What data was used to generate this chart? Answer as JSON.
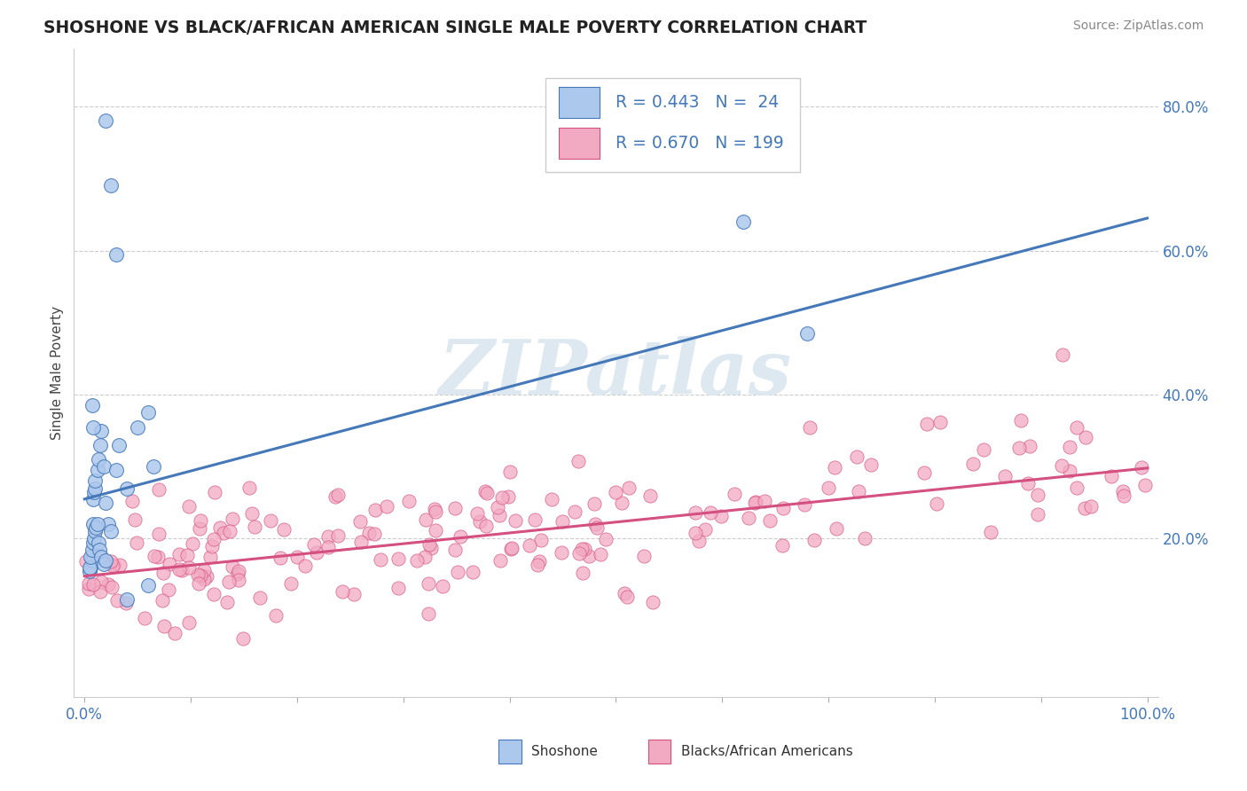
{
  "title": "SHOSHONE VS BLACK/AFRICAN AMERICAN SINGLE MALE POVERTY CORRELATION CHART",
  "source": "Source: ZipAtlas.com",
  "ylabel": "Single Male Poverty",
  "legend_label1": "Shoshone",
  "legend_label2": "Blacks/African Americans",
  "R1": 0.443,
  "N1": 24,
  "R2": 0.67,
  "N2": 199,
  "color1": "#adc8ed",
  "color2": "#f2aac2",
  "line_color1": "#4478b8",
  "line_color2": "#d45080",
  "bg_color": "#ffffff",
  "watermark": "ZIPatlas",
  "watermark_color": "#dde8f0",
  "shoshone_x": [
    0.005,
    0.006,
    0.007,
    0.008,
    0.008,
    0.009,
    0.01,
    0.01,
    0.012,
    0.013,
    0.015,
    0.016,
    0.018,
    0.02,
    0.022,
    0.025,
    0.03,
    0.032,
    0.04,
    0.05,
    0.06,
    0.065,
    0.62,
    0.68
  ],
  "shoshone_y": [
    0.155,
    0.16,
    0.17,
    0.22,
    0.255,
    0.265,
    0.27,
    0.28,
    0.295,
    0.31,
    0.33,
    0.35,
    0.3,
    0.25,
    0.22,
    0.21,
    0.295,
    0.33,
    0.27,
    0.355,
    0.375,
    0.3,
    0.64,
    0.485
  ],
  "trend1_x": [
    0.0,
    1.0
  ],
  "trend1_y": [
    0.255,
    0.645
  ],
  "trend2_x": [
    0.0,
    1.0
  ],
  "trend2_y": [
    0.148,
    0.298
  ],
  "ylim_min": -0.02,
  "ylim_max": 0.88,
  "xlim_min": -0.01,
  "xlim_max": 1.01,
  "yticks": [
    0.2,
    0.4,
    0.6,
    0.8
  ],
  "ytick_labels": [
    "20.0%",
    "40.0%",
    "60.0%",
    "80.0%"
  ],
  "xticks": [
    0.0,
    0.1,
    0.2,
    0.3,
    0.4,
    0.5,
    0.6,
    0.7,
    0.8,
    0.9,
    1.0
  ],
  "xtick_labels": [
    "0.0%",
    "",
    "",
    "",
    "",
    "",
    "",
    "",
    "",
    "",
    "100.0%"
  ]
}
